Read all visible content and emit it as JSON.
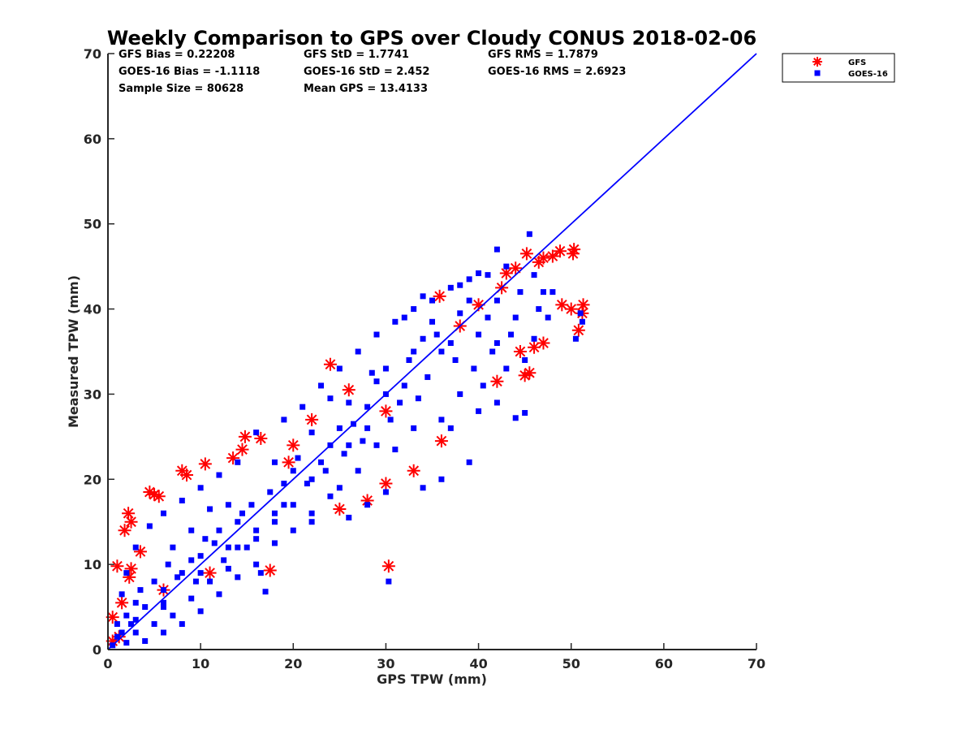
{
  "chart_data": {
    "type": "scatter",
    "title": "Weekly Comparison to GPS over Cloudy CONUS 2018-02-06",
    "xlabel": "GPS TPW (mm)",
    "ylabel": "Measured TPW (mm)",
    "xlim": [
      0,
      70
    ],
    "ylim": [
      0,
      70
    ],
    "xticks": [
      "0",
      "10",
      "20",
      "30",
      "40",
      "50",
      "60",
      "70"
    ],
    "yticks": [
      "0",
      "10",
      "20",
      "30",
      "40",
      "50",
      "60",
      "70"
    ],
    "grid": false,
    "legend_position": "outside-top-right",
    "stats": [
      [
        "GFS Bias = 0.22208",
        "GFS StD = 1.7741",
        "GFS RMS = 1.7879"
      ],
      [
        "GOES-16 Bias = -1.1118",
        "GOES-16 StD = 2.452",
        "GOES-16 RMS = 2.6923"
      ],
      [
        "Sample Size = 80628",
        "Mean GPS = 13.4133",
        ""
      ]
    ],
    "reference_line": {
      "x": [
        0,
        70
      ],
      "y": [
        0,
        70
      ],
      "color": "#0000ff"
    },
    "series": [
      {
        "name": "GFS",
        "marker": "asterisk",
        "color": "#ff0000",
        "points": [
          [
            0.5,
            3.8
          ],
          [
            1.0,
            9.8
          ],
          [
            1.8,
            14.0
          ],
          [
            2.2,
            16.0
          ],
          [
            2.5,
            15.0
          ],
          [
            2.3,
            8.5
          ],
          [
            2.5,
            9.5
          ],
          [
            4.5,
            18.5
          ],
          [
            5.0,
            18.2
          ],
          [
            5.5,
            18.0
          ],
          [
            8.0,
            21.0
          ],
          [
            10.5,
            21.8
          ],
          [
            8.5,
            20.5
          ],
          [
            13.5,
            22.5
          ],
          [
            14.5,
            23.5
          ],
          [
            14.8,
            25.0
          ],
          [
            16.5,
            24.8
          ],
          [
            17.5,
            9.3
          ],
          [
            30.3,
            9.8
          ],
          [
            24.0,
            33.5
          ],
          [
            35.8,
            41.5
          ],
          [
            36.0,
            24.5
          ],
          [
            42.0,
            31.5
          ],
          [
            45.0,
            32.2
          ],
          [
            45.5,
            32.5
          ],
          [
            45.2,
            46.5
          ],
          [
            46.5,
            45.5
          ],
          [
            47.0,
            46.0
          ],
          [
            48.0,
            46.2
          ],
          [
            48.8,
            46.8
          ],
          [
            50.3,
            47.0
          ],
          [
            50.2,
            46.5
          ],
          [
            47.0,
            36.0
          ],
          [
            46.0,
            35.5
          ],
          [
            49.0,
            40.5
          ],
          [
            50.0,
            40.0
          ],
          [
            51.3,
            40.5
          ],
          [
            51.2,
            39.5
          ],
          [
            50.8,
            37.5
          ],
          [
            44.5,
            35.0
          ],
          [
            30.0,
            19.5
          ],
          [
            33.0,
            21.0
          ],
          [
            44.0,
            44.8
          ],
          [
            43.0,
            44.2
          ],
          [
            42.5,
            42.5
          ],
          [
            3.5,
            11.5
          ],
          [
            1.5,
            5.5
          ],
          [
            1.2,
            1.5
          ],
          [
            0.5,
            1.0
          ],
          [
            20.0,
            24.0
          ],
          [
            26.0,
            30.5
          ],
          [
            30.0,
            28.0
          ],
          [
            25.0,
            16.5
          ],
          [
            28.0,
            17.5
          ],
          [
            22.0,
            27.0
          ],
          [
            38.0,
            38.0
          ],
          [
            40.0,
            40.5
          ],
          [
            19.5,
            22.0
          ],
          [
            11.0,
            9.0
          ],
          [
            6.0,
            7.0
          ]
        ]
      },
      {
        "name": "GOES-16",
        "marker": "square",
        "color": "#0000ff",
        "points": [
          [
            30.3,
            8.0
          ],
          [
            45.5,
            48.8
          ],
          [
            42.0,
            47.0
          ],
          [
            40.0,
            44.2
          ],
          [
            38.0,
            42.8
          ],
          [
            34.0,
            41.5
          ],
          [
            32.0,
            39.0
          ],
          [
            51.0,
            39.5
          ],
          [
            50.5,
            36.5
          ],
          [
            51.2,
            38.5
          ],
          [
            45.0,
            27.8
          ],
          [
            44.0,
            27.2
          ],
          [
            37.0,
            26.0
          ],
          [
            39.0,
            22.0
          ],
          [
            36.0,
            20.0
          ],
          [
            34.0,
            19.0
          ],
          [
            30.0,
            18.5
          ],
          [
            28.0,
            17.0
          ],
          [
            26.0,
            15.5
          ],
          [
            25.0,
            19.0
          ],
          [
            22.0,
            16.0
          ],
          [
            20.0,
            14.0
          ],
          [
            18.0,
            12.5
          ],
          [
            16.0,
            10.0
          ],
          [
            14.0,
            8.5
          ],
          [
            12.0,
            6.5
          ],
          [
            10.0,
            4.5
          ],
          [
            8.0,
            3.0
          ],
          [
            6.0,
            2.0
          ],
          [
            4.0,
            1.0
          ],
          [
            2.0,
            0.8
          ],
          [
            0.5,
            0.5
          ],
          [
            1.0,
            3.0
          ],
          [
            1.5,
            6.5
          ],
          [
            2.0,
            9.0
          ],
          [
            3.0,
            12.0
          ],
          [
            4.5,
            14.5
          ],
          [
            6.0,
            16.0
          ],
          [
            8.0,
            17.5
          ],
          [
            10.0,
            19.0
          ],
          [
            12.0,
            20.5
          ],
          [
            14.0,
            22.0
          ],
          [
            16.0,
            25.5
          ],
          [
            19.0,
            27.0
          ],
          [
            21.0,
            28.5
          ],
          [
            23.0,
            31.0
          ],
          [
            25.0,
            33.0
          ],
          [
            27.0,
            35.0
          ],
          [
            29.0,
            37.0
          ],
          [
            31.0,
            38.5
          ],
          [
            33.0,
            40.0
          ],
          [
            35.0,
            41.0
          ],
          [
            37.0,
            42.5
          ],
          [
            39.0,
            43.5
          ],
          [
            41.0,
            44.0
          ],
          [
            43.0,
            45.0
          ],
          [
            46.0,
            44.0
          ],
          [
            47.0,
            42.0
          ],
          [
            48.0,
            42.0
          ],
          [
            47.5,
            39.0
          ],
          [
            46.0,
            36.5
          ],
          [
            45.0,
            34.0
          ],
          [
            43.0,
            33.0
          ],
          [
            42.0,
            29.0
          ],
          [
            40.0,
            28.0
          ],
          [
            38.0,
            30.0
          ],
          [
            36.0,
            27.0
          ],
          [
            33.0,
            26.0
          ],
          [
            31.0,
            23.5
          ],
          [
            29.0,
            24.0
          ],
          [
            27.0,
            21.0
          ],
          [
            24.0,
            18.0
          ],
          [
            22.0,
            15.0
          ],
          [
            20.0,
            17.0
          ],
          [
            18.0,
            15.0
          ],
          [
            16.0,
            13.0
          ],
          [
            15.0,
            12.0
          ],
          [
            13.0,
            9.5
          ],
          [
            11.0,
            8.0
          ],
          [
            9.0,
            6.0
          ],
          [
            7.0,
            4.0
          ],
          [
            5.0,
            3.0
          ],
          [
            3.0,
            2.0
          ],
          [
            18.0,
            22.0
          ],
          [
            22.0,
            25.5
          ],
          [
            26.0,
            29.0
          ],
          [
            30.0,
            33.0
          ],
          [
            34.0,
            36.5
          ],
          [
            38.0,
            39.5
          ],
          [
            42.0,
            41.0
          ],
          [
            20.0,
            21.0
          ],
          [
            24.0,
            24.0
          ],
          [
            28.0,
            28.5
          ],
          [
            32.0,
            31.0
          ],
          [
            36.0,
            35.0
          ],
          [
            40.0,
            37.0
          ],
          [
            44.0,
            39.0
          ],
          [
            14.0,
            15.0
          ],
          [
            10.0,
            11.0
          ],
          [
            6.0,
            7.0
          ],
          [
            17.0,
            6.8
          ],
          [
            16.5,
            9.0
          ],
          [
            12.0,
            14.0
          ],
          [
            8.0,
            9.0
          ],
          [
            4.0,
            5.0
          ],
          [
            2.0,
            4.0
          ],
          [
            1.0,
            1.5
          ],
          [
            28.5,
            32.5
          ],
          [
            35.0,
            38.5
          ],
          [
            25.0,
            26.0
          ],
          [
            19.0,
            19.5
          ],
          [
            13.0,
            12.0
          ],
          [
            9.0,
            10.5
          ],
          [
            5.0,
            8.0
          ],
          [
            3.0,
            5.5
          ],
          [
            41.5,
            35.0
          ],
          [
            39.5,
            33.0
          ],
          [
            33.5,
            29.5
          ],
          [
            30.5,
            27.0
          ],
          [
            27.5,
            24.5
          ],
          [
            23.5,
            21.0
          ],
          [
            21.5,
            19.5
          ],
          [
            15.5,
            17.0
          ],
          [
            11.5,
            12.5
          ],
          [
            7.5,
            8.5
          ],
          [
            43.5,
            37.0
          ],
          [
            46.5,
            40.0
          ],
          [
            44.5,
            42.0
          ],
          [
            37.5,
            34.0
          ],
          [
            32.5,
            34.0
          ],
          [
            26.5,
            26.5
          ],
          [
            20.5,
            22.5
          ],
          [
            17.5,
            18.5
          ],
          [
            14.5,
            16.0
          ],
          [
            10.5,
            13.0
          ],
          [
            6.5,
            10.0
          ],
          [
            3.5,
            7.0
          ],
          [
            2.5,
            3.0
          ],
          [
            7.0,
            12.0
          ],
          [
            9.0,
            14.0
          ],
          [
            11.0,
            16.5
          ],
          [
            13.0,
            17.0
          ],
          [
            24.0,
            29.5
          ],
          [
            29.0,
            31.5
          ],
          [
            35.5,
            37.0
          ],
          [
            39.0,
            41.0
          ],
          [
            34.5,
            32.0
          ],
          [
            31.5,
            29.0
          ],
          [
            28.0,
            26.0
          ],
          [
            25.5,
            23.0
          ],
          [
            23.0,
            22.0
          ],
          [
            19.0,
            17.0
          ],
          [
            16.0,
            14.0
          ],
          [
            12.5,
            10.5
          ],
          [
            9.5,
            8.0
          ],
          [
            6.0,
            5.0
          ],
          [
            3.0,
            3.5
          ],
          [
            1.5,
            2.0
          ],
          [
            40.5,
            31.0
          ],
          [
            41.0,
            39.0
          ],
          [
            42.0,
            36.0
          ],
          [
            37.0,
            36.0
          ],
          [
            33.0,
            35.0
          ],
          [
            30.0,
            30.0
          ],
          [
            26.0,
            24.0
          ],
          [
            22.0,
            20.0
          ],
          [
            18.0,
            16.0
          ],
          [
            14.0,
            12.0
          ],
          [
            10.0,
            9.0
          ],
          [
            6.0,
            5.5
          ]
        ]
      }
    ]
  }
}
